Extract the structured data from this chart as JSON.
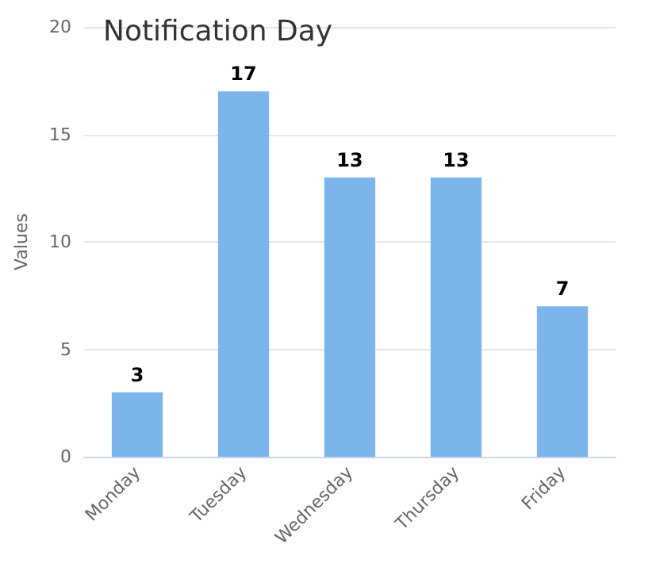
{
  "chart_data": {
    "type": "bar",
    "title": "Notification Day",
    "ylabel": "Values",
    "categories": [
      "Monday",
      "Tuesday",
      "Wednesday",
      "Thursday",
      "Friday"
    ],
    "values": [
      3,
      17,
      13,
      13,
      7
    ],
    "color": "#7cb5ec",
    "ylim": [
      0,
      20
    ],
    "yticks": [
      0,
      5,
      10,
      15,
      20
    ],
    "grid": "y",
    "data_labels": true
  }
}
